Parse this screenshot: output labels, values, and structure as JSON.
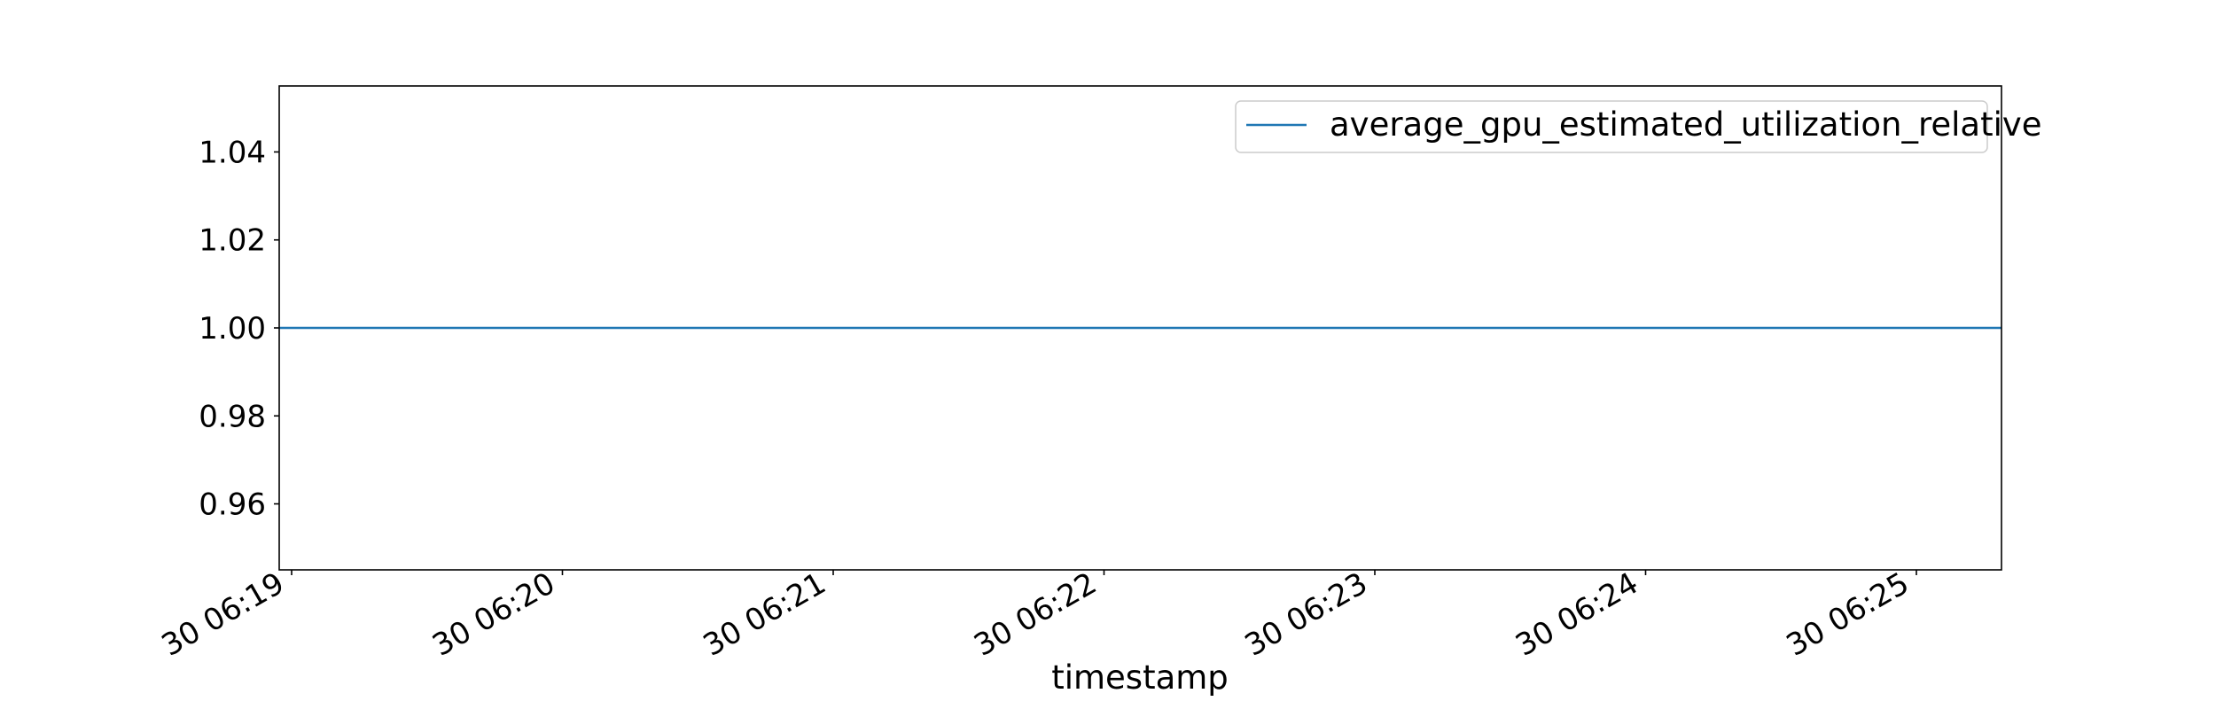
{
  "chart_data": {
    "type": "line",
    "title": "",
    "xlabel": "timestamp",
    "ylabel": "",
    "x_ticks": [
      "30 06:19",
      "30 06:20",
      "30 06:21",
      "30 06:22",
      "30 06:23",
      "30 06:24",
      "30 06:25"
    ],
    "y_ticks": [
      "0.96",
      "0.98",
      "1.00",
      "1.02",
      "1.04"
    ],
    "ylim": [
      0.945,
      1.055
    ],
    "grid": false,
    "legend_position": "top-right",
    "series": [
      {
        "name": "average_gpu_estimated_utilization_relative",
        "color": "#1f77b4",
        "x": [
          "30 06:19",
          "30 06:25"
        ],
        "y": [
          1.0,
          1.0
        ]
      }
    ]
  }
}
